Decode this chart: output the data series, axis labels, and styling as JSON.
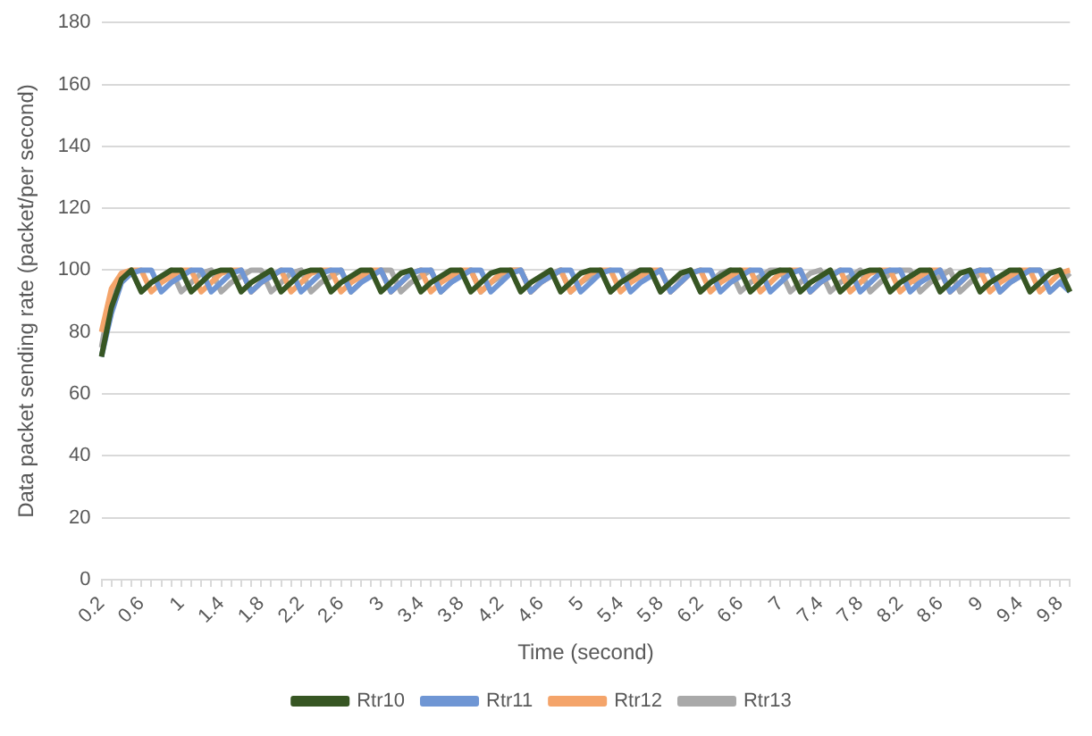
{
  "chart_data": {
    "type": "line",
    "xlabel": "Time (second)",
    "ylabel": "Data packet sending rate (packet/per second)",
    "categories": [
      "0.2",
      null,
      null,
      null,
      "0.6",
      null,
      null,
      null,
      "1",
      null,
      null,
      null,
      "1.4",
      null,
      null,
      null,
      "1.8",
      null,
      null,
      null,
      "2.2",
      null,
      null,
      null,
      "2.6",
      null,
      null,
      null,
      "3",
      null,
      null,
      null,
      "3.4",
      null,
      null,
      null,
      "3.8",
      null,
      null,
      null,
      "4.2",
      null,
      null,
      null,
      "4.6",
      null,
      null,
      null,
      "5",
      null,
      null,
      null,
      "5.4",
      null,
      null,
      null,
      "5.8",
      null,
      null,
      null,
      "6.2",
      null,
      null,
      null,
      "6.6",
      null,
      null,
      null,
      "7",
      null,
      null,
      null,
      "7.4",
      null,
      null,
      null,
      "7.8",
      null,
      null,
      null,
      "8.2",
      null,
      null,
      null,
      "8.6",
      null,
      null,
      null,
      "9",
      null,
      null,
      null,
      "9.4",
      null,
      null,
      null,
      "9.8",
      null
    ],
    "series": [
      {
        "name": "Rtr10",
        "color": "#375623",
        "values": [
          72,
          88,
          97,
          100,
          93,
          96,
          98,
          100,
          100,
          93,
          96,
          99,
          100,
          100,
          93,
          96,
          98,
          100,
          93,
          96,
          99,
          100,
          100,
          93,
          96,
          98,
          100,
          100,
          93,
          96,
          99,
          100,
          93,
          96,
          98,
          100,
          100,
          93,
          96,
          99,
          100,
          100,
          93,
          96,
          98,
          100,
          93,
          96,
          99,
          100,
          100,
          93,
          96,
          98,
          100,
          100,
          93,
          96,
          99,
          100,
          93,
          96,
          98,
          100,
          100,
          93,
          96,
          99,
          100,
          100,
          93,
          96,
          98,
          100,
          93,
          96,
          99,
          100,
          100,
          93,
          96,
          98,
          100,
          100,
          93,
          96,
          99,
          100,
          93,
          96,
          98,
          100,
          100,
          93,
          96,
          99,
          100,
          93
        ]
      },
      {
        "name": "Rtr11",
        "color": "#6f96d4",
        "values": [
          72,
          86,
          96,
          99,
          100,
          100,
          93,
          96,
          98,
          100,
          100,
          93,
          96,
          99,
          100,
          93,
          96,
          98,
          100,
          100,
          93,
          96,
          99,
          100,
          100,
          93,
          96,
          98,
          100,
          93,
          96,
          99,
          100,
          100,
          93,
          96,
          98,
          100,
          100,
          93,
          96,
          99,
          100,
          93,
          96,
          98,
          100,
          100,
          93,
          96,
          99,
          100,
          100,
          93,
          96,
          98,
          100,
          93,
          96,
          99,
          100,
          100,
          93,
          96,
          98,
          100,
          100,
          93,
          96,
          99,
          100,
          93,
          96,
          98,
          100,
          100,
          93,
          96,
          99,
          100,
          100,
          93,
          96,
          98,
          100,
          93,
          96,
          99,
          100,
          100,
          93,
          96,
          98,
          100,
          100,
          93,
          96,
          93
        ]
      },
      {
        "name": "Rtr12",
        "color": "#f4a46a",
        "values": [
          80,
          94,
          99,
          100,
          100,
          93,
          96,
          98,
          100,
          100,
          93,
          96,
          99,
          100,
          100,
          93,
          96,
          98,
          100,
          93,
          96,
          99,
          100,
          100,
          93,
          96,
          98,
          100,
          100,
          93,
          96,
          99,
          100,
          93,
          96,
          98,
          100,
          100,
          93,
          96,
          99,
          100,
          100,
          93,
          96,
          98,
          100,
          93,
          96,
          99,
          100,
          100,
          93,
          96,
          98,
          100,
          100,
          93,
          96,
          99,
          100,
          93,
          96,
          98,
          100,
          100,
          93,
          96,
          99,
          100,
          100,
          93,
          96,
          98,
          100,
          93,
          96,
          99,
          100,
          100,
          93,
          96,
          98,
          100,
          100,
          93,
          96,
          99,
          100,
          93,
          96,
          98,
          100,
          100,
          93,
          96,
          99,
          100
        ]
      },
      {
        "name": "Rtr13",
        "color": "#a9a9a9",
        "values": [
          75,
          93,
          98,
          100,
          93,
          96,
          98,
          100,
          93,
          96,
          99,
          100,
          93,
          96,
          98,
          100,
          100,
          93,
          96,
          99,
          100,
          93,
          96,
          98,
          100,
          93,
          96,
          99,
          100,
          100,
          93,
          96,
          98,
          100,
          93,
          96,
          99,
          100,
          93,
          96,
          98,
          100,
          100,
          93,
          96,
          99,
          100,
          93,
          96,
          98,
          100,
          93,
          96,
          99,
          100,
          100,
          93,
          96,
          98,
          100,
          93,
          96,
          99,
          100,
          93,
          96,
          98,
          100,
          100,
          93,
          96,
          99,
          100,
          93,
          96,
          98,
          100,
          93,
          96,
          99,
          100,
          100,
          93,
          96,
          98,
          100,
          93,
          96,
          99,
          100,
          93,
          96,
          98,
          100,
          100,
          93,
          96,
          99
        ]
      }
    ],
    "ylim": [
      0,
      180
    ],
    "yticks": [
      0,
      20,
      40,
      60,
      80,
      100,
      120,
      140,
      160,
      180
    ],
    "grid": "y",
    "legend": "bottom",
    "marker": "none",
    "line_style": "solid"
  }
}
